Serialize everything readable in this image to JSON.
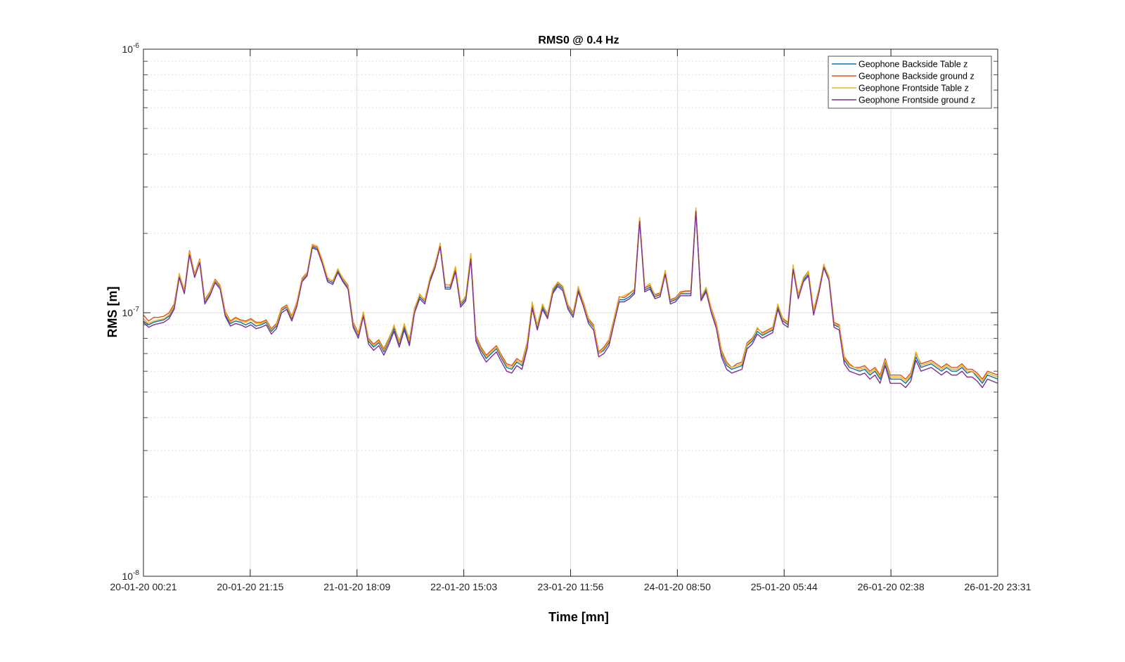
{
  "chart_data": {
    "type": "line",
    "title": "RMS0 @ 0.4 Hz",
    "xlabel": "Time [mn]",
    "ylabel": "RMS [m]",
    "yscale": "log",
    "ylim": [
      1e-08,
      1e-06
    ],
    "yticks": [
      {
        "base": "10",
        "exp": "-8",
        "value": 1e-08
      },
      {
        "base": "10",
        "exp": "-7",
        "value": 1e-07
      },
      {
        "base": "10",
        "exp": "-6",
        "value": 1e-06
      }
    ],
    "xticks": [
      "20-01-20 00:21",
      "20-01-20 21:15",
      "21-01-20 18:09",
      "22-01-20 15:03",
      "23-01-20 11:56",
      "24-01-20 08:50",
      "25-01-20 05:44",
      "26-01-20 02:38",
      "26-01-20 23:31"
    ],
    "x_start": "20-01-20 00:21",
    "x_end": "26-01-20 23:31",
    "grid": true,
    "legend_position": "top-right",
    "series": [
      {
        "name": "Geophone Backside Table z",
        "color": "#0072BD",
        "values_e7": [
          0.93,
          0.9,
          0.92,
          0.93,
          0.94,
          0.97,
          1.05,
          1.38,
          1.2,
          1.68,
          1.38,
          1.57,
          1.1,
          1.18,
          1.32,
          1.25,
          0.98,
          0.91,
          0.93,
          0.92,
          0.9,
          0.92,
          0.89,
          0.9,
          0.92,
          0.85,
          0.89,
          1.02,
          1.05,
          0.95,
          1.08,
          1.33,
          1.4,
          1.78,
          1.75,
          1.55,
          1.33,
          1.3,
          1.44,
          1.33,
          1.25,
          0.9,
          0.82,
          0.99,
          0.78,
          0.74,
          0.77,
          0.71,
          0.78,
          0.87,
          0.76,
          0.88,
          0.77,
          1.02,
          1.15,
          1.1,
          1.33,
          1.5,
          1.8,
          1.25,
          1.25,
          1.45,
          1.07,
          1.13,
          1.63,
          0.8,
          0.72,
          0.67,
          0.7,
          0.73,
          0.67,
          0.62,
          0.61,
          0.65,
          0.63,
          0.75,
          1.06,
          0.88,
          1.05,
          0.97,
          1.2,
          1.28,
          1.23,
          1.05,
          0.98,
          1.22,
          1.08,
          0.93,
          0.88,
          0.7,
          0.72,
          0.77,
          0.93,
          1.12,
          1.12,
          1.15,
          1.2,
          2.25,
          1.22,
          1.25,
          1.15,
          1.17,
          1.42,
          1.1,
          1.12,
          1.18,
          1.18,
          1.18,
          2.45,
          1.13,
          1.22,
          1.02,
          0.89,
          0.7,
          0.63,
          0.61,
          0.62,
          0.63,
          0.75,
          0.78,
          0.85,
          0.82,
          0.84,
          0.86,
          1.05,
          0.93,
          0.9,
          1.48,
          1.15,
          1.33,
          1.4,
          1.0,
          1.2,
          1.5,
          1.35,
          0.9,
          0.88,
          0.66,
          0.62,
          0.61,
          0.6,
          0.61,
          0.58,
          0.6,
          0.56,
          0.65,
          0.56,
          0.56,
          0.56,
          0.54,
          0.57,
          0.68,
          0.62,
          0.63,
          0.64,
          0.62,
          0.6,
          0.62,
          0.6,
          0.6,
          0.62,
          0.59,
          0.6,
          0.57,
          0.54,
          0.58,
          0.57,
          0.56
        ]
      },
      {
        "name": "Geophone Backside ground z",
        "color": "#D95319",
        "values_e7": [
          0.98,
          0.93,
          0.96,
          0.96,
          0.97,
          1.0,
          1.08,
          1.4,
          1.22,
          1.72,
          1.4,
          1.6,
          1.12,
          1.2,
          1.34,
          1.27,
          1.01,
          0.93,
          0.96,
          0.94,
          0.93,
          0.95,
          0.92,
          0.92,
          0.94,
          0.87,
          0.91,
          1.04,
          1.07,
          0.97,
          1.1,
          1.35,
          1.42,
          1.8,
          1.77,
          1.57,
          1.35,
          1.32,
          1.46,
          1.35,
          1.27,
          0.92,
          0.84,
          1.0,
          0.8,
          0.76,
          0.79,
          0.73,
          0.8,
          0.89,
          0.78,
          0.9,
          0.79,
          1.04,
          1.17,
          1.12,
          1.35,
          1.53,
          1.82,
          1.28,
          1.27,
          1.48,
          1.09,
          1.15,
          1.66,
          0.82,
          0.74,
          0.69,
          0.72,
          0.75,
          0.69,
          0.64,
          0.63,
          0.67,
          0.65,
          0.77,
          1.08,
          0.9,
          1.07,
          0.99,
          1.22,
          1.3,
          1.25,
          1.07,
          1.0,
          1.24,
          1.1,
          0.95,
          0.9,
          0.71,
          0.74,
          0.79,
          0.95,
          1.15,
          1.14,
          1.18,
          1.22,
          2.28,
          1.24,
          1.27,
          1.17,
          1.19,
          1.44,
          1.12,
          1.14,
          1.2,
          1.21,
          1.21,
          2.48,
          1.15,
          1.24,
          1.04,
          0.91,
          0.72,
          0.65,
          0.62,
          0.64,
          0.65,
          0.77,
          0.8,
          0.87,
          0.84,
          0.86,
          0.88,
          1.07,
          0.95,
          0.92,
          1.5,
          1.17,
          1.35,
          1.43,
          1.02,
          1.22,
          1.52,
          1.37,
          0.92,
          0.9,
          0.68,
          0.64,
          0.62,
          0.62,
          0.63,
          0.6,
          0.62,
          0.58,
          0.67,
          0.58,
          0.58,
          0.58,
          0.56,
          0.59,
          0.7,
          0.64,
          0.65,
          0.66,
          0.64,
          0.62,
          0.64,
          0.62,
          0.62,
          0.64,
          0.61,
          0.61,
          0.59,
          0.56,
          0.6,
          0.59,
          0.58
        ]
      },
      {
        "name": "Geophone Frontside Table z",
        "color": "#EDB120",
        "values_e7": [
          0.95,
          0.91,
          0.93,
          0.94,
          0.95,
          0.98,
          1.06,
          1.41,
          1.21,
          1.7,
          1.39,
          1.59,
          1.11,
          1.19,
          1.33,
          1.26,
          1.0,
          0.92,
          0.95,
          0.93,
          0.92,
          0.94,
          0.91,
          0.91,
          0.93,
          0.86,
          0.9,
          1.03,
          1.06,
          0.96,
          1.09,
          1.34,
          1.41,
          1.82,
          1.79,
          1.58,
          1.36,
          1.31,
          1.47,
          1.34,
          1.26,
          0.91,
          0.83,
          1.01,
          0.79,
          0.75,
          0.78,
          0.72,
          0.79,
          0.9,
          0.77,
          0.91,
          0.78,
          1.03,
          1.18,
          1.11,
          1.36,
          1.52,
          1.84,
          1.27,
          1.28,
          1.5,
          1.08,
          1.16,
          1.68,
          0.81,
          0.73,
          0.68,
          0.71,
          0.74,
          0.68,
          0.63,
          0.62,
          0.66,
          0.64,
          0.76,
          1.1,
          0.89,
          1.08,
          0.98,
          1.23,
          1.31,
          1.26,
          1.06,
          0.99,
          1.26,
          1.09,
          0.94,
          0.89,
          0.7,
          0.73,
          0.78,
          0.94,
          1.14,
          1.16,
          1.19,
          1.23,
          2.3,
          1.25,
          1.29,
          1.16,
          1.18,
          1.45,
          1.11,
          1.13,
          1.19,
          1.2,
          1.2,
          2.5,
          1.14,
          1.25,
          1.03,
          0.9,
          0.71,
          0.64,
          0.62,
          0.63,
          0.64,
          0.76,
          0.79,
          0.88,
          0.83,
          0.85,
          0.87,
          1.08,
          0.94,
          0.91,
          1.52,
          1.16,
          1.36,
          1.44,
          1.01,
          1.21,
          1.53,
          1.36,
          0.91,
          0.89,
          0.67,
          0.63,
          0.62,
          0.61,
          0.62,
          0.59,
          0.61,
          0.57,
          0.66,
          0.57,
          0.57,
          0.57,
          0.55,
          0.58,
          0.71,
          0.63,
          0.64,
          0.65,
          0.63,
          0.61,
          0.63,
          0.61,
          0.61,
          0.63,
          0.6,
          0.6,
          0.58,
          0.55,
          0.59,
          0.58,
          0.57
        ]
      },
      {
        "name": "Geophone Frontside ground z",
        "color": "#7E2F8E",
        "values_e7": [
          0.92,
          0.88,
          0.9,
          0.91,
          0.92,
          0.95,
          1.03,
          1.36,
          1.18,
          1.66,
          1.36,
          1.55,
          1.08,
          1.16,
          1.3,
          1.23,
          0.97,
          0.89,
          0.91,
          0.9,
          0.88,
          0.9,
          0.87,
          0.88,
          0.9,
          0.83,
          0.87,
          1.0,
          1.03,
          0.93,
          1.06,
          1.31,
          1.38,
          1.76,
          1.73,
          1.53,
          1.31,
          1.28,
          1.42,
          1.31,
          1.23,
          0.88,
          0.8,
          0.97,
          0.76,
          0.72,
          0.75,
          0.69,
          0.76,
          0.85,
          0.74,
          0.86,
          0.75,
          1.0,
          1.13,
          1.08,
          1.31,
          1.48,
          1.78,
          1.23,
          1.23,
          1.43,
          1.05,
          1.11,
          1.6,
          0.78,
          0.7,
          0.65,
          0.68,
          0.71,
          0.65,
          0.6,
          0.59,
          0.63,
          0.61,
          0.73,
          1.04,
          0.86,
          1.03,
          0.95,
          1.18,
          1.26,
          1.21,
          1.03,
          0.96,
          1.2,
          1.06,
          0.91,
          0.86,
          0.68,
          0.7,
          0.75,
          0.91,
          1.1,
          1.1,
          1.13,
          1.18,
          2.22,
          1.2,
          1.23,
          1.13,
          1.15,
          1.4,
          1.08,
          1.1,
          1.16,
          1.16,
          1.16,
          2.42,
          1.11,
          1.2,
          1.0,
          0.87,
          0.68,
          0.61,
          0.59,
          0.6,
          0.61,
          0.73,
          0.76,
          0.83,
          0.8,
          0.82,
          0.84,
          1.03,
          0.91,
          0.88,
          1.46,
          1.13,
          1.31,
          1.38,
          0.98,
          1.18,
          1.48,
          1.33,
          0.88,
          0.86,
          0.64,
          0.6,
          0.59,
          0.58,
          0.59,
          0.56,
          0.58,
          0.54,
          0.63,
          0.54,
          0.54,
          0.54,
          0.52,
          0.55,
          0.66,
          0.6,
          0.61,
          0.62,
          0.6,
          0.58,
          0.6,
          0.58,
          0.58,
          0.6,
          0.57,
          0.57,
          0.55,
          0.52,
          0.56,
          0.55,
          0.54
        ]
      }
    ]
  }
}
